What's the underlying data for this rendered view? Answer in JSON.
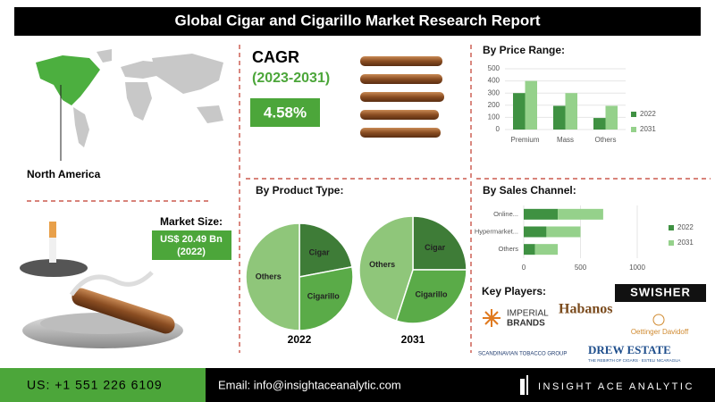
{
  "header": {
    "title": "Global Cigar and Cigarillo Market Research Report"
  },
  "region": {
    "label": "North America"
  },
  "market_size": {
    "label": "Market Size:",
    "value": "US$ 20.49 Bn",
    "year": "(2022)"
  },
  "cagr": {
    "label": "CAGR",
    "period": "(2023-2031)",
    "value": "4.58%"
  },
  "product_type": {
    "title": "By Product Type:"
  },
  "chart_data": [
    {
      "type": "pie",
      "title": "2022",
      "categories": [
        "Cigar",
        "Cigarillo",
        "Others"
      ],
      "values": [
        22,
        28,
        50
      ],
      "colors": [
        "#3e7c37",
        "#5aab48",
        "#8fc67a"
      ]
    },
    {
      "type": "pie",
      "title": "2031",
      "categories": [
        "Cigar",
        "Cigarillo",
        "Others"
      ],
      "values": [
        25,
        30,
        45
      ],
      "colors": [
        "#3e7c37",
        "#5aab48",
        "#8fc67a"
      ]
    },
    {
      "type": "bar",
      "title": "By Price Range:",
      "categories": [
        "Premium",
        "Mass",
        "Others"
      ],
      "series": [
        {
          "name": "2022",
          "color": "#3f9142",
          "values": [
            300,
            195,
            95
          ]
        },
        {
          "name": "2031",
          "color": "#95d18b",
          "values": [
            400,
            300,
            195
          ]
        }
      ],
      "ylim": [
        0,
        500
      ],
      "yticks": [
        0,
        100,
        200,
        300,
        400,
        500
      ],
      "legend": "right"
    },
    {
      "type": "stacked_barh",
      "title": "By Sales Channel:",
      "categories": [
        "Online...",
        "Hypermarket...",
        "Others"
      ],
      "series": [
        {
          "name": "2022",
          "color": "#3f9142",
          "values": [
            300,
            200,
            100
          ]
        },
        {
          "name": "2031",
          "color": "#95d18b",
          "values": [
            400,
            300,
            200
          ]
        }
      ],
      "xlim": [
        0,
        1000
      ],
      "xticks": [
        0,
        500,
        1000
      ],
      "grid": true,
      "legend": "right"
    }
  ],
  "key_players": {
    "title": "Key Players:",
    "logos": [
      "SWISHER",
      "IMPERIAL",
      "BRANDS",
      "Habanos",
      "Oettinger Davidoff",
      "SCANDINAVIAN TOBACCO GROUP",
      "DREW ESTATE",
      "THE REBIRTH OF CIGARS · ESTELI NICARAGUA"
    ]
  },
  "footer": {
    "phone": "US: +1 551 226 6109",
    "email": "Email: info@insightaceanalytic.com",
    "brand": "INSIGHT ACE ANALYTIC"
  }
}
